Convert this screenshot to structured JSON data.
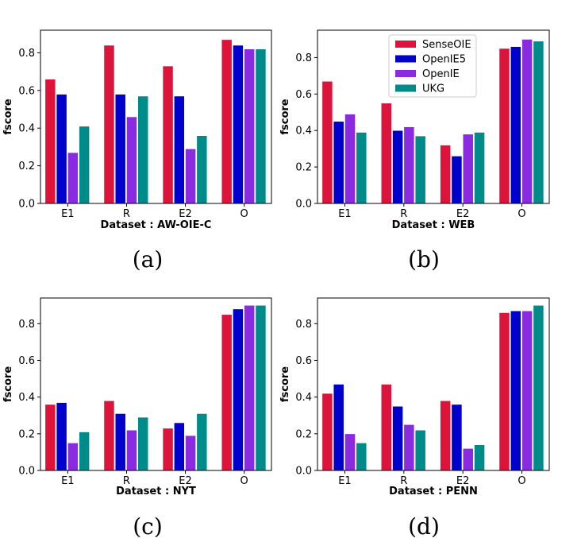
{
  "colors": {
    "SenseOIE": "#dc143c",
    "OpenIE5": "#0000cd",
    "OpenIE": "#8a2be2",
    "UKG": "#008b8b"
  },
  "legend": [
    "SenseOIE",
    "OpenIE5",
    "OpenIE",
    "UKG"
  ],
  "chart_data": [
    {
      "type": "bar",
      "panel_label": "(a)",
      "title": "",
      "xlabel": "Dataset : AW-OIE-C",
      "ylabel": "fscore",
      "ylim": [
        0,
        0.92
      ],
      "yticks": [
        "0.0",
        "0.2",
        "0.4",
        "0.6",
        "0.8"
      ],
      "categories": [
        "E1",
        "R",
        "E2",
        "O"
      ],
      "legend_visible": false,
      "series": [
        {
          "name": "SenseOIE",
          "values": [
            0.66,
            0.84,
            0.73,
            0.87
          ]
        },
        {
          "name": "OpenIE5",
          "values": [
            0.58,
            0.58,
            0.57,
            0.84
          ]
        },
        {
          "name": "OpenIE",
          "values": [
            0.27,
            0.46,
            0.29,
            0.82
          ]
        },
        {
          "name": "UKG",
          "values": [
            0.41,
            0.57,
            0.36,
            0.82
          ]
        }
      ]
    },
    {
      "type": "bar",
      "panel_label": "(b)",
      "title": "",
      "xlabel": "Dataset : WEB",
      "ylabel": "fscore",
      "ylim": [
        0,
        0.95
      ],
      "yticks": [
        "0.0",
        "0.2",
        "0.4",
        "0.6",
        "0.8"
      ],
      "categories": [
        "E1",
        "R",
        "E2",
        "O"
      ],
      "legend_visible": true,
      "legend_position": "top-center",
      "series": [
        {
          "name": "SenseOIE",
          "values": [
            0.67,
            0.55,
            0.32,
            0.85
          ]
        },
        {
          "name": "OpenIE5",
          "values": [
            0.45,
            0.4,
            0.26,
            0.86
          ]
        },
        {
          "name": "OpenIE",
          "values": [
            0.49,
            0.42,
            0.38,
            0.9
          ]
        },
        {
          "name": "UKG",
          "values": [
            0.39,
            0.37,
            0.39,
            0.89
          ]
        }
      ]
    },
    {
      "type": "bar",
      "panel_label": "(c)",
      "title": "",
      "xlabel": "Dataset : NYT",
      "ylabel": "fscore",
      "ylim": [
        0,
        0.94
      ],
      "yticks": [
        "0.0",
        "0.2",
        "0.4",
        "0.6",
        "0.8"
      ],
      "categories": [
        "E1",
        "R",
        "E2",
        "O"
      ],
      "legend_visible": false,
      "series": [
        {
          "name": "SenseOIE",
          "values": [
            0.36,
            0.38,
            0.23,
            0.85
          ]
        },
        {
          "name": "OpenIE5",
          "values": [
            0.37,
            0.31,
            0.26,
            0.88
          ]
        },
        {
          "name": "OpenIE",
          "values": [
            0.15,
            0.22,
            0.19,
            0.9
          ]
        },
        {
          "name": "UKG",
          "values": [
            0.21,
            0.29,
            0.31,
            0.9
          ]
        }
      ]
    },
    {
      "type": "bar",
      "panel_label": "(d)",
      "title": "",
      "xlabel": "Dataset : PENN",
      "ylabel": "fscore",
      "ylim": [
        0,
        0.94
      ],
      "yticks": [
        "0.0",
        "0.2",
        "0.4",
        "0.6",
        "0.8"
      ],
      "categories": [
        "E1",
        "R",
        "E2",
        "O"
      ],
      "legend_visible": false,
      "series": [
        {
          "name": "SenseOIE",
          "values": [
            0.42,
            0.47,
            0.38,
            0.86
          ]
        },
        {
          "name": "OpenIE5",
          "values": [
            0.47,
            0.35,
            0.36,
            0.87
          ]
        },
        {
          "name": "OpenIE",
          "values": [
            0.2,
            0.25,
            0.12,
            0.87
          ]
        },
        {
          "name": "UKG",
          "values": [
            0.15,
            0.22,
            0.14,
            0.9
          ]
        }
      ]
    }
  ]
}
